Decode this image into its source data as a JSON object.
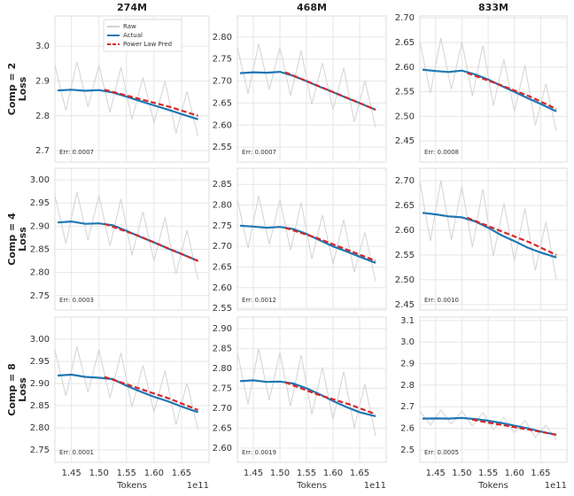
{
  "chart_data": [
    {
      "type": "line",
      "title": "274M",
      "ylabel": [
        "Comp = 2",
        "Loss"
      ],
      "annotation": "Err: 0.0007",
      "legend": "upper center",
      "grid": true,
      "xlim": [
        1.42,
        1.7
      ],
      "ylim": [
        2.667,
        3.087
      ],
      "xticks": [
        1.45,
        1.5,
        1.55,
        1.6,
        1.65
      ],
      "xtick_labels": false,
      "yticks": [
        2.7,
        2.8,
        2.9,
        {
          "value": 3,
          "label": "3.0"
        }
      ],
      "series": [
        {
          "name": "Raw",
          "color": "#d3d3d3",
          "linestyle": "solid",
          "x": [
            1.42,
            1.44,
            1.46,
            1.48,
            1.5,
            1.52,
            1.54,
            1.56,
            1.58,
            1.6,
            1.62,
            1.64,
            1.66,
            1.68
          ],
          "values": [
            2.945,
            2.815,
            2.955,
            2.825,
            2.945,
            2.81,
            2.94,
            2.79,
            2.91,
            2.78,
            2.9,
            2.75,
            2.87,
            2.74
          ]
        },
        {
          "name": "Actual",
          "color": "#1f77b4",
          "linestyle": "solid",
          "x": [
            1.425,
            1.45,
            1.475,
            1.5,
            1.525,
            1.55,
            1.575,
            1.6,
            1.625,
            1.65,
            1.68
          ],
          "values": [
            2.873,
            2.875,
            2.872,
            2.874,
            2.867,
            2.855,
            2.842,
            2.83,
            2.818,
            2.805,
            2.79
          ]
        },
        {
          "name": "Power Law Pred",
          "color": "#d62728",
          "linestyle": "dashed",
          "x": [
            1.51,
            1.57,
            1.63,
            1.68
          ],
          "values": [
            2.875,
            2.85,
            2.825,
            2.8
          ]
        }
      ]
    },
    {
      "type": "line",
      "title": "468M",
      "annotation": "Err: 0.0007",
      "grid": true,
      "xlim": [
        1.42,
        1.7
      ],
      "ylim": [
        2.516,
        2.848
      ],
      "xticks": [
        1.45,
        1.5,
        1.55,
        1.6,
        1.65
      ],
      "xtick_labels": false,
      "yticks": [
        2.55,
        {
          "value": 2.6,
          "label": "2.60"
        },
        2.65,
        {
          "value": 2.7,
          "label": "2.70"
        },
        2.75,
        {
          "value": 2.8,
          "label": "2.80"
        }
      ],
      "series": [
        {
          "color": "#d3d3d3",
          "linestyle": "solid",
          "x": [
            1.42,
            1.44,
            1.46,
            1.48,
            1.5,
            1.52,
            1.54,
            1.56,
            1.58,
            1.6,
            1.62,
            1.64,
            1.66,
            1.68
          ],
          "values": [
            2.776,
            2.672,
            2.784,
            2.68,
            2.776,
            2.667,
            2.769,
            2.647,
            2.741,
            2.635,
            2.729,
            2.607,
            2.701,
            2.595
          ]
        },
        {
          "color": "#1f77b4",
          "linestyle": "solid",
          "x": [
            1.425,
            1.45,
            1.475,
            1.5,
            1.525,
            1.55,
            1.575,
            1.6,
            1.625,
            1.65,
            1.68
          ],
          "values": [
            2.718,
            2.72,
            2.719,
            2.721,
            2.712,
            2.7,
            2.687,
            2.675,
            2.662,
            2.65,
            2.635
          ]
        },
        {
          "color": "#d62728",
          "linestyle": "dashed",
          "x": [
            1.51,
            1.57,
            1.63,
            1.68
          ],
          "values": [
            2.72,
            2.69,
            2.66,
            2.635
          ]
        }
      ]
    },
    {
      "type": "line",
      "title": "833M",
      "annotation": "Err: 0.0008",
      "grid": true,
      "xlim": [
        1.42,
        1.7
      ],
      "ylim": [
        2.407,
        2.704
      ],
      "xticks": [
        1.45,
        1.5,
        1.55,
        1.6,
        1.65
      ],
      "xtick_labels": false,
      "yticks": [
        2.45,
        {
          "value": 2.5,
          "label": "2.50"
        },
        2.55,
        {
          "value": 2.6,
          "label": "2.60"
        },
        2.65,
        {
          "value": 2.7,
          "label": "2.70"
        }
      ],
      "series": [
        {
          "color": "#d3d3d3",
          "linestyle": "solid",
          "x": [
            1.42,
            1.44,
            1.46,
            1.48,
            1.5,
            1.52,
            1.54,
            1.56,
            1.58,
            1.6,
            1.62,
            1.64,
            1.66,
            1.68
          ],
          "values": [
            2.651,
            2.547,
            2.659,
            2.555,
            2.651,
            2.542,
            2.644,
            2.522,
            2.616,
            2.51,
            2.604,
            2.482,
            2.566,
            2.47
          ]
        },
        {
          "color": "#1f77b4",
          "linestyle": "solid",
          "x": [
            1.425,
            1.45,
            1.475,
            1.5,
            1.525,
            1.55,
            1.575,
            1.6,
            1.625,
            1.65,
            1.68
          ],
          "values": [
            2.595,
            2.592,
            2.59,
            2.593,
            2.585,
            2.575,
            2.562,
            2.55,
            2.537,
            2.525,
            2.51
          ]
        },
        {
          "color": "#d62728",
          "linestyle": "dashed",
          "x": [
            1.51,
            1.57,
            1.63,
            1.68
          ],
          "values": [
            2.588,
            2.565,
            2.54,
            2.515
          ]
        }
      ]
    },
    {
      "type": "line",
      "ylabel": [
        "Comp = 4",
        "Loss"
      ],
      "annotation": "Err: 0.0003",
      "grid": true,
      "xlim": [
        1.42,
        1.7
      ],
      "ylim": [
        2.719,
        3.025
      ],
      "xticks": [
        1.45,
        1.5,
        1.55,
        1.6,
        1.65
      ],
      "xtick_labels": false,
      "yticks": [
        2.75,
        {
          "value": 2.8,
          "label": "2.80"
        },
        2.85,
        {
          "value": 2.9,
          "label": "2.90"
        },
        2.95,
        {
          "value": 3,
          "label": "3.00"
        }
      ],
      "series": [
        {
          "color": "#d3d3d3",
          "linestyle": "solid",
          "x": [
            1.42,
            1.44,
            1.46,
            1.48,
            1.5,
            1.52,
            1.54,
            1.56,
            1.58,
            1.6,
            1.62,
            1.64,
            1.66,
            1.68
          ],
          "values": [
            2.966,
            2.862,
            2.974,
            2.87,
            2.966,
            2.857,
            2.959,
            2.837,
            2.931,
            2.825,
            2.919,
            2.797,
            2.891,
            2.785
          ]
        },
        {
          "color": "#1f77b4",
          "linestyle": "solid",
          "x": [
            1.425,
            1.45,
            1.475,
            1.5,
            1.525,
            1.55,
            1.575,
            1.6,
            1.625,
            1.65,
            1.68
          ],
          "values": [
            2.908,
            2.91,
            2.905,
            2.906,
            2.902,
            2.89,
            2.877,
            2.865,
            2.852,
            2.84,
            2.825
          ]
        },
        {
          "color": "#d62728",
          "linestyle": "dashed",
          "x": [
            1.51,
            1.57,
            1.63,
            1.68
          ],
          "values": [
            2.905,
            2.88,
            2.85,
            2.825
          ]
        }
      ]
    },
    {
      "type": "line",
      "annotation": "Err: 0.0012",
      "grid": true,
      "xlim": [
        1.42,
        1.7
      ],
      "ylim": [
        2.546,
        2.889
      ],
      "xticks": [
        1.45,
        1.5,
        1.55,
        1.6,
        1.65
      ],
      "xtick_labels": false,
      "yticks": [
        2.55,
        {
          "value": 2.6,
          "label": "2.60"
        },
        2.65,
        {
          "value": 2.7,
          "label": "2.70"
        },
        2.75,
        {
          "value": 2.8,
          "label": "2.80"
        },
        2.85
      ],
      "series": [
        {
          "color": "#d3d3d3",
          "linestyle": "solid",
          "x": [
            1.42,
            1.44,
            1.46,
            1.48,
            1.5,
            1.52,
            1.54,
            1.56,
            1.58,
            1.6,
            1.62,
            1.64,
            1.66,
            1.68
          ],
          "values": [
            2.813,
            2.696,
            2.822,
            2.705,
            2.813,
            2.691,
            2.806,
            2.67,
            2.776,
            2.657,
            2.764,
            2.638,
            2.734,
            2.615
          ]
        },
        {
          "color": "#1f77b4",
          "linestyle": "solid",
          "x": [
            1.425,
            1.45,
            1.475,
            1.5,
            1.525,
            1.55,
            1.575,
            1.6,
            1.625,
            1.65,
            1.68
          ],
          "values": [
            2.75,
            2.748,
            2.745,
            2.747,
            2.742,
            2.73,
            2.715,
            2.7,
            2.688,
            2.675,
            2.66
          ]
        },
        {
          "color": "#d62728",
          "linestyle": "dashed",
          "x": [
            1.51,
            1.57,
            1.63,
            1.68
          ],
          "values": [
            2.745,
            2.72,
            2.69,
            2.665
          ]
        }
      ]
    },
    {
      "type": "line",
      "annotation": "Err: 0.0010",
      "grid": true,
      "xlim": [
        1.42,
        1.7
      ],
      "ylim": [
        2.439,
        2.725
      ],
      "xticks": [
        1.45,
        1.5,
        1.55,
        1.6,
        1.65
      ],
      "xtick_labels": false,
      "yticks": [
        2.45,
        {
          "value": 2.5,
          "label": "2.50"
        },
        2.55,
        {
          "value": 2.6,
          "label": "2.60"
        },
        2.65,
        {
          "value": 2.7,
          "label": "2.70"
        }
      ],
      "series": [
        {
          "color": "#d3d3d3",
          "linestyle": "solid",
          "x": [
            1.42,
            1.44,
            1.46,
            1.48,
            1.5,
            1.52,
            1.54,
            1.56,
            1.58,
            1.6,
            1.62,
            1.64,
            1.66,
            1.68
          ],
          "values": [
            2.698,
            2.578,
            2.7,
            2.581,
            2.688,
            2.566,
            2.683,
            2.548,
            2.655,
            2.538,
            2.645,
            2.519,
            2.617,
            2.5
          ]
        },
        {
          "color": "#1f77b4",
          "linestyle": "solid",
          "x": [
            1.425,
            1.45,
            1.475,
            1.5,
            1.525,
            1.55,
            1.575,
            1.6,
            1.625,
            1.65,
            1.68
          ],
          "values": [
            2.635,
            2.632,
            2.628,
            2.626,
            2.618,
            2.605,
            2.59,
            2.578,
            2.565,
            2.555,
            2.545
          ]
        },
        {
          "color": "#d62728",
          "linestyle": "dashed",
          "x": [
            1.51,
            1.57,
            1.63,
            1.68
          ],
          "values": [
            2.625,
            2.6,
            2.575,
            2.55
          ]
        }
      ]
    },
    {
      "type": "line",
      "ylabel": [
        "Comp = 8",
        "Loss"
      ],
      "annotation": "Err: 0.0001",
      "grid": true,
      "xlabel": "Tokens",
      "offset_label": "1e11",
      "xlim": [
        1.42,
        1.7
      ],
      "ylim": [
        2.722,
        3.05
      ],
      "xticks": [
        1.45,
        {
          "value": 1.5,
          "label": "1.50"
        },
        1.55,
        {
          "value": 1.6,
          "label": "1.60"
        },
        1.65
      ],
      "xtick_labels": true,
      "yticks": [
        2.75,
        {
          "value": 2.8,
          "label": "2.80"
        },
        2.85,
        {
          "value": 2.9,
          "label": "2.90"
        },
        2.95,
        {
          "value": 3,
          "label": "3.00"
        }
      ],
      "series": [
        {
          "color": "#d3d3d3",
          "linestyle": "solid",
          "x": [
            1.42,
            1.44,
            1.46,
            1.48,
            1.5,
            1.52,
            1.54,
            1.56,
            1.58,
            1.6,
            1.62,
            1.64,
            1.66,
            1.68
          ],
          "values": [
            2.976,
            2.872,
            2.984,
            2.88,
            2.976,
            2.867,
            2.969,
            2.847,
            2.941,
            2.835,
            2.929,
            2.807,
            2.901,
            2.795
          ]
        },
        {
          "color": "#1f77b4",
          "linestyle": "solid",
          "x": [
            1.425,
            1.45,
            1.475,
            1.5,
            1.525,
            1.55,
            1.575,
            1.6,
            1.625,
            1.65,
            1.68
          ],
          "values": [
            2.918,
            2.92,
            2.915,
            2.913,
            2.91,
            2.895,
            2.882,
            2.87,
            2.86,
            2.848,
            2.835
          ]
        },
        {
          "color": "#d62728",
          "linestyle": "dashed",
          "x": [
            1.51,
            1.57,
            1.63,
            1.68
          ],
          "values": [
            2.915,
            2.89,
            2.865,
            2.84
          ]
        }
      ]
    },
    {
      "type": "line",
      "annotation": "Err: 0.0019",
      "grid": true,
      "xlabel": "Tokens",
      "offset_label": "1e11",
      "xlim": [
        1.42,
        1.7
      ],
      "ylim": [
        2.564,
        2.929
      ],
      "xticks": [
        1.45,
        {
          "value": 1.5,
          "label": "1.50"
        },
        1.55,
        {
          "value": 1.6,
          "label": "1.60"
        },
        1.65
      ],
      "xtick_labels": true,
      "yticks": [
        {
          "value": 2.6,
          "label": "2.60"
        },
        2.65,
        {
          "value": 2.7,
          "label": "2.70"
        },
        2.75,
        {
          "value": 2.8,
          "label": "2.80"
        },
        2.85,
        {
          "value": 2.9,
          "label": "2.90"
        }
      ],
      "series": [
        {
          "color": "#d3d3d3",
          "linestyle": "solid",
          "x": [
            1.42,
            1.44,
            1.46,
            1.48,
            1.5,
            1.52,
            1.54,
            1.56,
            1.58,
            1.6,
            1.62,
            1.64,
            1.66,
            1.68
          ],
          "values": [
            2.84,
            2.71,
            2.85,
            2.72,
            2.84,
            2.705,
            2.834,
            2.684,
            2.803,
            2.672,
            2.792,
            2.651,
            2.761,
            2.63
          ]
        },
        {
          "color": "#1f77b4",
          "linestyle": "solid",
          "x": [
            1.425,
            1.45,
            1.475,
            1.5,
            1.525,
            1.55,
            1.575,
            1.6,
            1.625,
            1.65,
            1.68
          ],
          "values": [
            2.768,
            2.77,
            2.766,
            2.767,
            2.762,
            2.75,
            2.735,
            2.718,
            2.703,
            2.69,
            2.68
          ]
        },
        {
          "color": "#d62728",
          "linestyle": "dashed",
          "x": [
            1.51,
            1.57,
            1.63,
            1.68
          ],
          "values": [
            2.765,
            2.735,
            2.71,
            2.685
          ]
        }
      ]
    },
    {
      "type": "line",
      "annotation": "Err: 0.0005",
      "grid": true,
      "xlabel": "Tokens",
      "offset_label": "1e11",
      "xlim": [
        1.42,
        1.7
      ],
      "ylim": [
        2.442,
        3.116
      ],
      "xticks": [
        1.45,
        {
          "value": 1.5,
          "label": "1.50"
        },
        1.55,
        {
          "value": 1.6,
          "label": "1.60"
        },
        1.65
      ],
      "xtick_labels": true,
      "yticks": [
        2.5,
        2.6,
        2.7,
        2.8,
        2.9,
        {
          "value": 3,
          "label": "3.0"
        },
        3.1
      ],
      "series": [
        {
          "color": "#d3d3d3",
          "linestyle": "solid",
          "x": [
            1.42,
            1.44,
            1.46,
            1.48,
            1.5,
            1.52,
            1.54,
            1.56,
            1.58,
            1.6,
            1.62,
            1.64,
            1.66,
            1.68
          ],
          "values": [
            2.68,
            2.615,
            2.685,
            2.62,
            2.68,
            2.611,
            2.672,
            2.593,
            2.649,
            2.58,
            2.637,
            2.558,
            2.614,
            2.545
          ]
        },
        {
          "color": "#1f77b4",
          "linestyle": "solid",
          "x": [
            1.425,
            1.45,
            1.475,
            1.5,
            1.525,
            1.55,
            1.575,
            1.6,
            1.625,
            1.65,
            1.68
          ],
          "values": [
            2.645,
            2.646,
            2.645,
            2.648,
            2.643,
            2.635,
            2.625,
            2.612,
            2.6,
            2.585,
            2.57
          ]
        },
        {
          "color": "#d62728",
          "linestyle": "dashed",
          "x": [
            1.52,
            1.57,
            1.63,
            1.68
          ],
          "values": [
            2.64,
            2.618,
            2.593,
            2.57
          ]
        }
      ]
    }
  ]
}
